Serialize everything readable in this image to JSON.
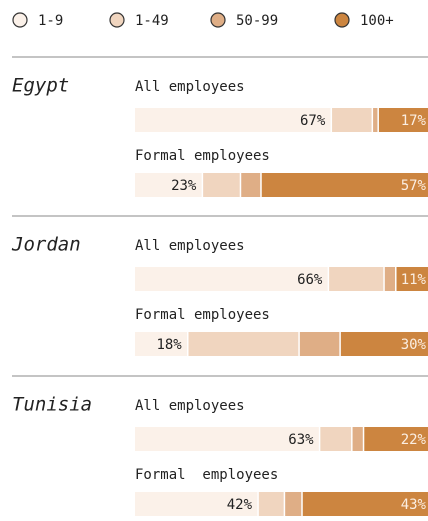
{
  "chart_data": {
    "type": "bar",
    "orientation": "horizontal",
    "stacked": true,
    "xlim": [
      0,
      100
    ],
    "panels": [
      {
        "title": "Egypt",
        "categories": [
          "All employees",
          "Formal employees"
        ]
      },
      {
        "title": "Jordan",
        "categories": [
          "All employees",
          "Formal employees"
        ]
      },
      {
        "title": "Tunisia",
        "categories": [
          "All employees",
          "Formal  employees"
        ]
      }
    ],
    "series": [
      {
        "name": "1-9",
        "color": "#fbf1e9",
        "values": [
          67,
          23,
          66,
          18,
          63,
          42
        ],
        "value_labels": [
          "67%",
          "23%",
          "66%",
          "18%",
          "63%",
          "42%"
        ]
      },
      {
        "name": "1-49",
        "color": "#f0d5bf",
        "values": [
          14,
          13,
          19,
          38,
          11,
          9
        ],
        "value_labels": [
          null,
          null,
          null,
          null,
          null,
          null
        ]
      },
      {
        "name": "50-99",
        "color": "#dfae86",
        "values": [
          2,
          7,
          4,
          14,
          4,
          6
        ],
        "value_labels": [
          null,
          null,
          null,
          null,
          null,
          null
        ]
      },
      {
        "name": "100+",
        "color": "#cc8540",
        "values": [
          17,
          57,
          11,
          30,
          22,
          43
        ],
        "value_labels": [
          "17%",
          "57%",
          "11%",
          "30%",
          "22%",
          "43%"
        ]
      }
    ]
  }
}
